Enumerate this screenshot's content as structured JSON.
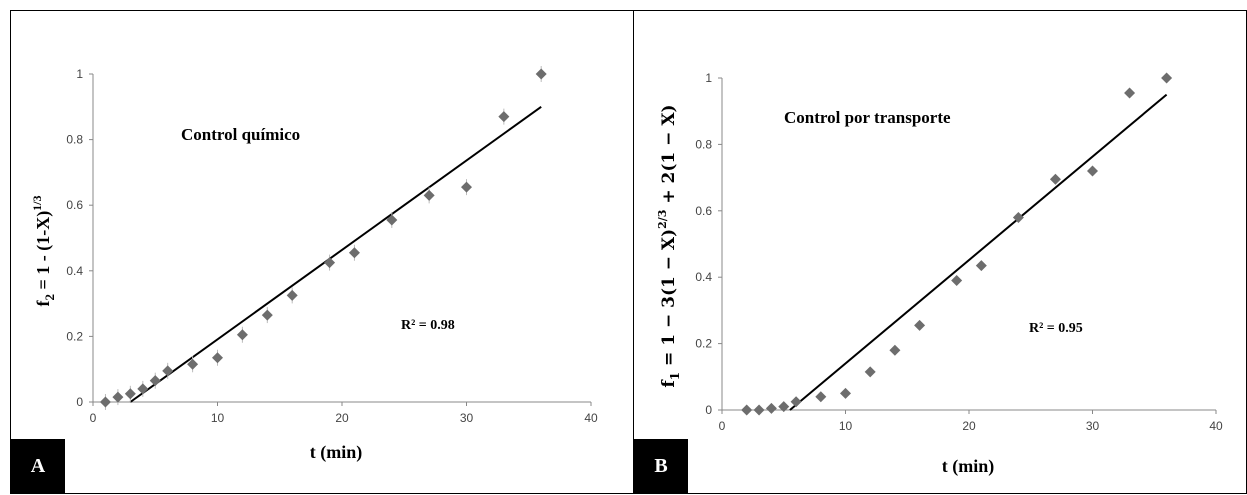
{
  "chart_data": [
    {
      "type": "scatter",
      "panel_label": "A",
      "title": "Control químico",
      "annotation": "R² = 0.98",
      "xlabel": "t (min)",
      "ylabel_main": "f",
      "ylabel_sub": "2",
      "ylabel_rest": " = 1 - (1-X)",
      "ylabel_sup": "1/3",
      "xlim": [
        0,
        40
      ],
      "ylim": [
        0,
        1
      ],
      "x_ticks": [
        "0",
        "10",
        "20",
        "30",
        "40"
      ],
      "y_ticks": [
        "0",
        "0.2",
        "0.4",
        "0.6",
        "0.8",
        "1"
      ],
      "marker_color": "#6d6d6d",
      "series": [
        {
          "x": [
            1,
            2,
            3,
            4,
            5,
            6,
            8,
            10,
            12,
            14,
            16,
            19,
            21,
            24,
            27,
            30,
            33,
            36
          ],
          "y": [
            0.0,
            0.015,
            0.025,
            0.04,
            0.065,
            0.095,
            0.115,
            0.135,
            0.205,
            0.265,
            0.325,
            0.425,
            0.455,
            0.555,
            0.63,
            0.655,
            0.87,
            1.0
          ]
        }
      ],
      "trendline": {
        "x": [
          3,
          36
        ],
        "y": [
          0.0,
          0.9
        ]
      },
      "grid": false
    },
    {
      "type": "scatter",
      "panel_label": "B",
      "title": "Control por transporte",
      "annotation": "R² = 0.95",
      "xlabel": "t (min)",
      "ylabel_main": "f",
      "ylabel_sub": "1",
      "ylabel_rest": " = 1 − 3(1 − X)",
      "ylabel_sup": "2/3",
      "ylabel_tail": " + 2(1 − X)",
      "xlim": [
        0,
        40
      ],
      "ylim": [
        0,
        1
      ],
      "x_ticks": [
        "0",
        "10",
        "20",
        "30",
        "40"
      ],
      "y_ticks": [
        "0",
        "0.2",
        "0.4",
        "0.6",
        "0.8",
        "1"
      ],
      "marker_color": "#6d6d6d",
      "series": [
        {
          "x": [
            2,
            3,
            4,
            5,
            6,
            8,
            10,
            12,
            14,
            16,
            19,
            21,
            24,
            27,
            30,
            33,
            36
          ],
          "y": [
            0.0,
            0.0,
            0.005,
            0.01,
            0.025,
            0.04,
            0.05,
            0.115,
            0.18,
            0.255,
            0.39,
            0.435,
            0.58,
            0.695,
            0.72,
            0.955,
            1.0
          ]
        }
      ],
      "trendline": {
        "x": [
          5.5,
          36
        ],
        "y": [
          0.0,
          0.95
        ]
      },
      "grid": false
    }
  ]
}
